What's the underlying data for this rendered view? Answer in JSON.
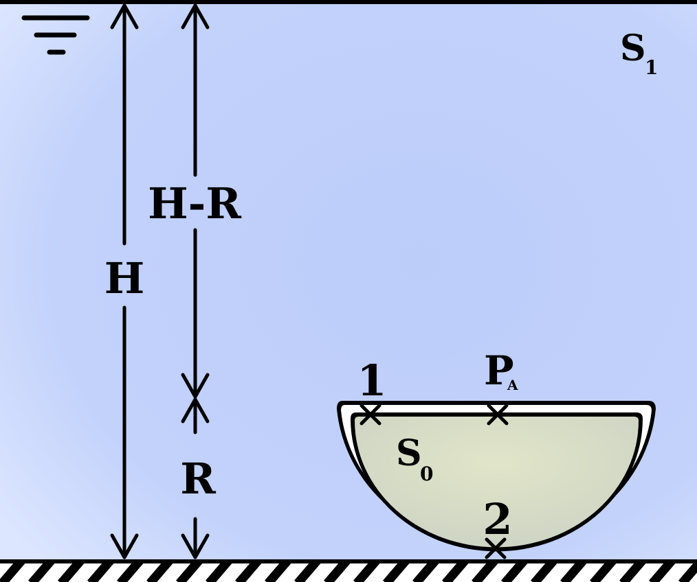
{
  "labels": {
    "h": "H",
    "h_minus_r": "H-R",
    "r": "R",
    "s1_main": "S",
    "s1_sub": "1",
    "s0_main": "S",
    "s0_sub": "0",
    "point1": "1",
    "point2": "2",
    "pa_main": "P",
    "pa_sub": "A"
  },
  "colors": {
    "outer_fluid": "#bccdfa",
    "outer_fluid_edge": "#dce6ff",
    "inner_fluid_center": "#e1e5c8",
    "inner_fluid_edge": "#cdd3c4",
    "ink": "#000000",
    "shell": "#ffffff"
  },
  "icons": {
    "free_surface": "free-surface-symbol",
    "ground": "hatched-ground"
  }
}
